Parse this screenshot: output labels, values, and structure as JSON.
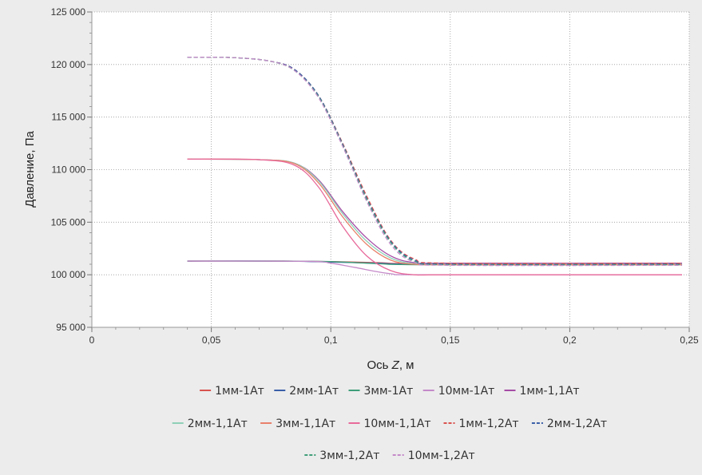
{
  "chart_data": {
    "type": "line",
    "title": "",
    "xlabel_prefix": "Ось ",
    "xlabel_var": "Z",
    "xlabel_suffix": ", м",
    "ylabel": "Давление, Па",
    "xlim": [
      0,
      0.25
    ],
    "ylim": [
      95000,
      125000
    ],
    "xticks": [
      0,
      0.05,
      0.1,
      0.15,
      0.2,
      0.25
    ],
    "xtick_labels": [
      "0",
      "0,05",
      "0,1",
      "0,15",
      "0,2",
      "0,25"
    ],
    "yticks": [
      95000,
      100000,
      105000,
      110000,
      115000,
      120000,
      125000
    ],
    "ytick_labels": [
      "95 000",
      "100 000",
      "105 000",
      "110 000",
      "115 000",
      "120 000",
      "125 000"
    ],
    "grid": true,
    "legend_position": "bottom",
    "series": [
      {
        "name": "1мм-1Ат",
        "color": "#d9534f",
        "dash": "solid",
        "points": [
          [
            0.04,
            101300
          ],
          [
            0.08,
            101300
          ],
          [
            0.1,
            101250
          ],
          [
            0.12,
            101150
          ],
          [
            0.14,
            101050
          ],
          [
            0.247,
            101100
          ]
        ]
      },
      {
        "name": "2мм-1Ат",
        "color": "#3a5fa8",
        "dash": "solid",
        "points": [
          [
            0.04,
            101300
          ],
          [
            0.08,
            101300
          ],
          [
            0.1,
            101200
          ],
          [
            0.12,
            101100
          ],
          [
            0.14,
            101000
          ],
          [
            0.247,
            101000
          ]
        ]
      },
      {
        "name": "3мм-1Ат",
        "color": "#3f9e7a",
        "dash": "solid",
        "points": [
          [
            0.04,
            101300
          ],
          [
            0.08,
            101300
          ],
          [
            0.1,
            101250
          ],
          [
            0.12,
            101050
          ],
          [
            0.14,
            100950
          ],
          [
            0.247,
            100950
          ]
        ]
      },
      {
        "name": "10мм-1Ат",
        "color": "#c58ac9",
        "dash": "solid",
        "points": [
          [
            0.04,
            101300
          ],
          [
            0.09,
            101280
          ],
          [
            0.1,
            101100
          ],
          [
            0.11,
            100700
          ],
          [
            0.125,
            100100
          ],
          [
            0.14,
            100000
          ],
          [
            0.247,
            100000
          ]
        ]
      },
      {
        "name": "1мм-1,1Ат",
        "color": "#a64ca6",
        "dash": "solid",
        "points": [
          [
            0.04,
            111000
          ],
          [
            0.07,
            110950
          ],
          [
            0.085,
            110600
          ],
          [
            0.095,
            109000
          ],
          [
            0.105,
            106000
          ],
          [
            0.115,
            103500
          ],
          [
            0.125,
            101800
          ],
          [
            0.135,
            101150
          ],
          [
            0.15,
            101100
          ],
          [
            0.247,
            101100
          ]
        ]
      },
      {
        "name": "2мм-1,1Ат",
        "color": "#8fd0b8",
        "dash": "solid",
        "points": [
          [
            0.04,
            111000
          ],
          [
            0.07,
            110950
          ],
          [
            0.085,
            110600
          ],
          [
            0.095,
            108900
          ],
          [
            0.105,
            105800
          ],
          [
            0.115,
            103200
          ],
          [
            0.125,
            101600
          ],
          [
            0.135,
            101050
          ],
          [
            0.15,
            101000
          ],
          [
            0.247,
            101000
          ]
        ]
      },
      {
        "name": "3мм-1,1Ат",
        "color": "#e8806a",
        "dash": "solid",
        "points": [
          [
            0.04,
            111000
          ],
          [
            0.07,
            110950
          ],
          [
            0.085,
            110550
          ],
          [
            0.095,
            108700
          ],
          [
            0.105,
            105500
          ],
          [
            0.115,
            102900
          ],
          [
            0.125,
            101400
          ],
          [
            0.135,
            101000
          ],
          [
            0.15,
            100950
          ],
          [
            0.247,
            100950
          ]
        ]
      },
      {
        "name": "10мм-1,1Ат",
        "color": "#e86a9a",
        "dash": "solid",
        "points": [
          [
            0.04,
            111000
          ],
          [
            0.07,
            110950
          ],
          [
            0.085,
            110400
          ],
          [
            0.095,
            108300
          ],
          [
            0.105,
            104600
          ],
          [
            0.115,
            101800
          ],
          [
            0.125,
            100400
          ],
          [
            0.135,
            100000
          ],
          [
            0.15,
            100000
          ],
          [
            0.247,
            100000
          ]
        ]
      },
      {
        "name": "1мм-1,2Ат",
        "color": "#d9534f",
        "dash": "dashed",
        "points": [
          [
            0.04,
            120700
          ],
          [
            0.06,
            120650
          ],
          [
            0.075,
            120300
          ],
          [
            0.085,
            119500
          ],
          [
            0.095,
            117000
          ],
          [
            0.105,
            112500
          ],
          [
            0.115,
            107500
          ],
          [
            0.125,
            103300
          ],
          [
            0.135,
            101500
          ],
          [
            0.15,
            101100
          ],
          [
            0.247,
            101100
          ]
        ]
      },
      {
        "name": "2мм-1,2Ат",
        "color": "#3a5fa8",
        "dash": "dashed",
        "points": [
          [
            0.04,
            120700
          ],
          [
            0.06,
            120650
          ],
          [
            0.075,
            120300
          ],
          [
            0.085,
            119500
          ],
          [
            0.095,
            117000
          ],
          [
            0.105,
            112400
          ],
          [
            0.115,
            107300
          ],
          [
            0.125,
            103200
          ],
          [
            0.135,
            101400
          ],
          [
            0.15,
            101000
          ],
          [
            0.247,
            101000
          ]
        ]
      },
      {
        "name": "3мм-1,2Ат",
        "color": "#3f9e7a",
        "dash": "dashed",
        "points": [
          [
            0.04,
            120700
          ],
          [
            0.06,
            120650
          ],
          [
            0.075,
            120300
          ],
          [
            0.085,
            119400
          ],
          [
            0.095,
            116900
          ],
          [
            0.105,
            112300
          ],
          [
            0.115,
            107200
          ],
          [
            0.125,
            103100
          ],
          [
            0.135,
            101300
          ],
          [
            0.15,
            100950
          ],
          [
            0.247,
            100950
          ]
        ]
      },
      {
        "name": "10мм-1,2Ат",
        "color": "#c58ac9",
        "dash": "dashed",
        "points": [
          [
            0.04,
            120700
          ],
          [
            0.06,
            120650
          ],
          [
            0.075,
            120300
          ],
          [
            0.085,
            119400
          ],
          [
            0.095,
            116800
          ],
          [
            0.105,
            112200
          ],
          [
            0.115,
            107000
          ],
          [
            0.125,
            102900
          ],
          [
            0.135,
            101200
          ],
          [
            0.15,
            100900
          ],
          [
            0.247,
            100900
          ]
        ]
      }
    ],
    "legend_rows": [
      [
        0,
        1,
        2,
        3,
        4
      ],
      [
        5,
        6,
        7,
        8,
        9
      ],
      [
        10,
        11
      ]
    ]
  }
}
